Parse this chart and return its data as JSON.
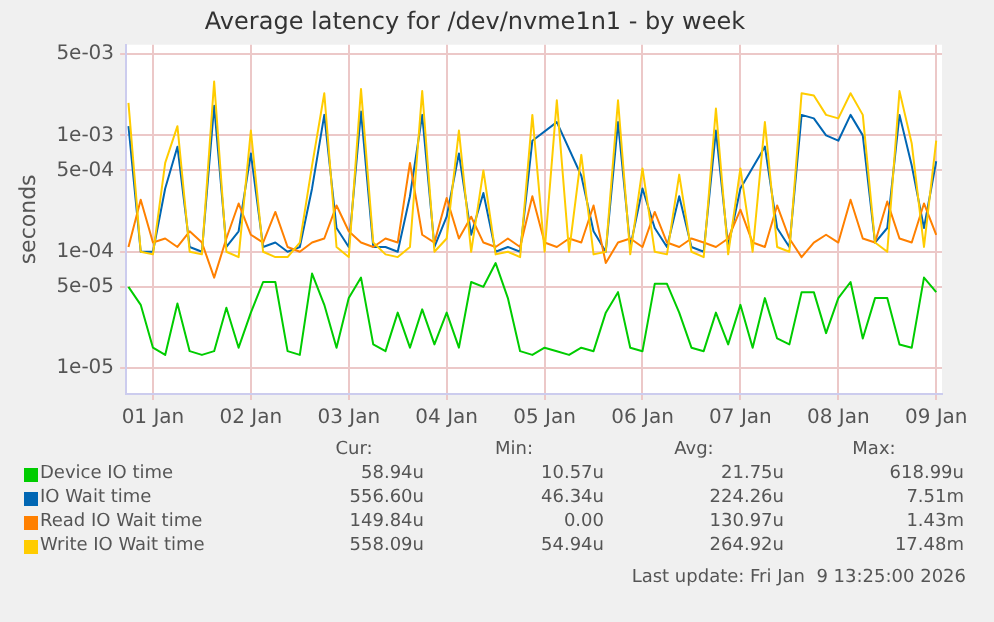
{
  "chart_data": {
    "type": "line",
    "title": "Average latency for /dev/nvme1n1 - by week",
    "ylabel": "seconds",
    "log": "y",
    "grid": true,
    "legend": "bottom",
    "marker": "none",
    "line_style": "solid",
    "xlim": [
      "2026-01-01T05:25",
      "2026-01-09T13:25"
    ],
    "xticks": [
      {
        "value": "2026-01-01T12:00",
        "label": "01 Jan"
      },
      {
        "value": "2026-01-02T12:00",
        "label": "02 Jan"
      },
      {
        "value": "2026-01-03T12:00",
        "label": "03 Jan"
      },
      {
        "value": "2026-01-04T12:00",
        "label": "04 Jan"
      },
      {
        "value": "2026-01-05T12:00",
        "label": "05 Jan"
      },
      {
        "value": "2026-01-06T12:00",
        "label": "06 Jan"
      },
      {
        "value": "2026-01-07T12:00",
        "label": "07 Jan"
      },
      {
        "value": "2026-01-08T12:00",
        "label": "08 Jan"
      },
      {
        "value": "2026-01-09T12:00",
        "label": "09 Jan"
      }
    ],
    "ylim": [
      6e-06,
      0.006
    ],
    "yticks": [
      {
        "value": 1e-05,
        "label": "1e-05"
      },
      {
        "value": 5e-05,
        "label": "5e-05"
      },
      {
        "value": 0.0001,
        "label": "1e-04"
      },
      {
        "value": 0.0005,
        "label": "5e-04"
      },
      {
        "value": 0.001,
        "label": "1e-03"
      },
      {
        "value": 0.005,
        "label": "5e-03"
      }
    ],
    "x": [
      "2026-01-01T06:00",
      "2026-01-01T09:00",
      "2026-01-01T12:00",
      "2026-01-01T15:00",
      "2026-01-01T18:00",
      "2026-01-01T21:00",
      "2026-01-02T00:00",
      "2026-01-02T03:00",
      "2026-01-02T06:00",
      "2026-01-02T09:00",
      "2026-01-02T12:00",
      "2026-01-02T15:00",
      "2026-01-02T18:00",
      "2026-01-02T21:00",
      "2026-01-03T00:00",
      "2026-01-03T03:00",
      "2026-01-03T06:00",
      "2026-01-03T09:00",
      "2026-01-03T12:00",
      "2026-01-03T15:00",
      "2026-01-03T18:00",
      "2026-01-03T21:00",
      "2026-01-04T00:00",
      "2026-01-04T03:00",
      "2026-01-04T06:00",
      "2026-01-04T09:00",
      "2026-01-04T12:00",
      "2026-01-04T15:00",
      "2026-01-04T18:00",
      "2026-01-04T21:00",
      "2026-01-05T00:00",
      "2026-01-05T03:00",
      "2026-01-05T06:00",
      "2026-01-05T09:00",
      "2026-01-05T12:00",
      "2026-01-05T15:00",
      "2026-01-05T18:00",
      "2026-01-05T21:00",
      "2026-01-06T00:00",
      "2026-01-06T03:00",
      "2026-01-06T06:00",
      "2026-01-06T09:00",
      "2026-01-06T12:00",
      "2026-01-06T15:00",
      "2026-01-06T18:00",
      "2026-01-06T21:00",
      "2026-01-07T00:00",
      "2026-01-07T03:00",
      "2026-01-07T06:00",
      "2026-01-07T09:00",
      "2026-01-07T12:00",
      "2026-01-07T15:00",
      "2026-01-07T18:00",
      "2026-01-07T21:00",
      "2026-01-08T00:00",
      "2026-01-08T03:00",
      "2026-01-08T06:00",
      "2026-01-08T09:00",
      "2026-01-08T12:00",
      "2026-01-08T15:00",
      "2026-01-08T18:00",
      "2026-01-08T21:00",
      "2026-01-09T00:00",
      "2026-01-09T03:00",
      "2026-01-09T06:00",
      "2026-01-09T09:00",
      "2026-01-09T12:00"
    ],
    "series": [
      {
        "name": "Device IO time",
        "color": "#00cc00",
        "values": [
          5e-05,
          3.5e-05,
          1.5e-05,
          1.3e-05,
          3.6e-05,
          1.4e-05,
          1.3e-05,
          1.4e-05,
          3.3e-05,
          1.5e-05,
          3e-05,
          5.5e-05,
          5.5e-05,
          1.4e-05,
          1.3e-05,
          6.5e-05,
          3.5e-05,
          1.5e-05,
          4e-05,
          6e-05,
          1.6e-05,
          1.4e-05,
          3e-05,
          1.5e-05,
          3.2e-05,
          1.6e-05,
          3e-05,
          1.5e-05,
          5.5e-05,
          5e-05,
          8e-05,
          4e-05,
          1.4e-05,
          1.3e-05,
          1.5e-05,
          1.4e-05,
          1.3e-05,
          1.5e-05,
          1.4e-05,
          3e-05,
          4.5e-05,
          1.5e-05,
          1.4e-05,
          5.3e-05,
          5.3e-05,
          3e-05,
          1.5e-05,
          1.4e-05,
          3e-05,
          1.6e-05,
          3.5e-05,
          1.5e-05,
          4e-05,
          1.8e-05,
          1.6e-05,
          4.5e-05,
          4.5e-05,
          2e-05,
          4e-05,
          5.5e-05,
          1.8e-05,
          4e-05,
          4e-05,
          1.6e-05,
          1.5e-05,
          6e-05,
          4.5e-05
        ]
      },
      {
        "name": "IO Wait time",
        "color": "#0066b3",
        "values": [
          0.0012,
          0.0001,
          0.0001,
          0.00035,
          0.0008,
          0.00011,
          0.0001,
          0.0018,
          0.00011,
          0.00015,
          0.0007,
          0.00011,
          0.00012,
          0.0001,
          0.00011,
          0.00035,
          0.0015,
          0.00016,
          0.00011,
          0.0016,
          0.00011,
          0.00011,
          0.0001,
          0.0003,
          0.0015,
          0.00011,
          0.0002,
          0.0007,
          0.00014,
          0.00032,
          0.0001,
          0.00011,
          0.0001,
          0.0009,
          null,
          0.0013,
          null,
          0.00045,
          0.00015,
          0.0001,
          0.0013,
          0.00011,
          0.00035,
          0.00016,
          0.00011,
          0.0003,
          0.00011,
          0.0001,
          0.0011,
          0.00011,
          0.00035,
          null,
          0.0008,
          0.00016,
          0.00011,
          0.0015,
          0.0014,
          0.001,
          0.0009,
          0.0015,
          0.001,
          0.00012,
          0.00016,
          0.0015,
          0.00055,
          0.00016,
          0.0006
        ]
      },
      {
        "name": "Read IO Wait time",
        "color": "#ff8000",
        "values": [
          0.00011,
          0.00028,
          0.00012,
          0.00013,
          0.00011,
          0.00015,
          0.00012,
          6e-05,
          0.00013,
          0.00026,
          0.00014,
          0.00012,
          0.00022,
          0.00011,
          0.0001,
          0.00012,
          0.00013,
          0.00025,
          0.00015,
          0.00012,
          0.00011,
          0.00013,
          0.00012,
          0.00058,
          0.00014,
          0.00012,
          0.00029,
          0.00013,
          0.0002,
          0.00012,
          0.00011,
          0.00013,
          0.00011,
          0.0003,
          0.00012,
          0.00011,
          0.00013,
          0.00012,
          0.00025,
          8e-05,
          0.00012,
          0.00013,
          0.00011,
          0.00022,
          0.00012,
          0.00011,
          0.00013,
          0.00012,
          0.00011,
          0.00013,
          0.00023,
          0.00012,
          0.00011,
          0.00025,
          0.00013,
          9e-05,
          0.00012,
          0.00014,
          0.00012,
          0.00028,
          0.00013,
          0.00012,
          0.00027,
          0.00013,
          0.00012,
          0.00026,
          0.00014
        ]
      },
      {
        "name": "Write IO Wait time",
        "color": "#ffcc00",
        "values": [
          0.0019,
          0.0001,
          9.5e-05,
          0.00058,
          0.0012,
          0.0001,
          9.5e-05,
          0.0029,
          0.0001,
          9e-05,
          0.0011,
          0.0001,
          9e-05,
          9e-05,
          0.00012,
          0.00055,
          0.0023,
          0.00011,
          9e-05,
          0.0025,
          0.00012,
          9.5e-05,
          9e-05,
          0.00011,
          0.0024,
          0.0001,
          0.00013,
          0.0011,
          0.0001,
          0.0005,
          9.5e-05,
          0.0001,
          9e-05,
          0.0015,
          0.0001,
          0.002,
          0.0001,
          0.00068,
          9.5e-05,
          0.0001,
          0.002,
          9.5e-05,
          0.00052,
          0.0001,
          9.5e-05,
          0.00046,
          0.0001,
          9e-05,
          0.0017,
          9.5e-05,
          0.00052,
          0.0001,
          0.0013,
          0.00011,
          0.0001,
          0.0023,
          0.0022,
          0.0015,
          0.0014,
          0.0023,
          0.0015,
          0.00012,
          0.0001,
          0.0024,
          0.00085,
          0.00011,
          0.0009
        ]
      }
    ],
    "annotations": [
      "Cur:",
      "Min:",
      "Avg:",
      "Max:",
      "58.94u",
      "10.57u",
      "21.75u",
      "618.99u",
      "556.60u",
      "46.34u",
      "224.26u",
      "7.51m",
      "149.84u",
      "0.00",
      "130.97u",
      "1.43m",
      "558.09u",
      "54.94u",
      "264.92u",
      "17.48m",
      "Last update: Fri Jan  9 13:25:00 2026"
    ]
  }
}
